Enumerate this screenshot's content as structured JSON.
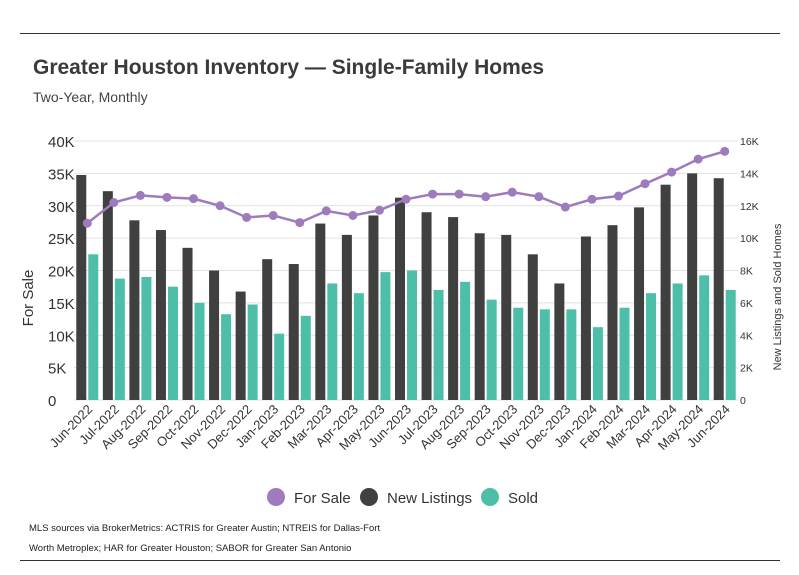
{
  "title": "Greater Houston Inventory — Single-Family Homes",
  "subtitle": "Two-Year, Monthly",
  "source_line1": "MLS sources via BrokerMetrics: ACTRIS for Greater Austin; NTREIS for Dallas-Fort",
  "source_line2": "Worth Metroplex; HAR for Greater Houston; SABOR for Greater San Antonio",
  "colors": {
    "for_sale": "#9e7bbd",
    "new_listings": "#404040",
    "sold": "#4dbfa8",
    "grid": "#e2e2e2",
    "text": "#333333"
  },
  "chart_data": {
    "type": "bar",
    "categories": [
      "Jun-2022",
      "Jul-2022",
      "Aug-2022",
      "Sep-2022",
      "Oct-2022",
      "Nov-2022",
      "Dec-2022",
      "Jan-2023",
      "Feb-2023",
      "Mar-2023",
      "Apr-2023",
      "May-2023",
      "Jun-2023",
      "Jul-2023",
      "Aug-2023",
      "Sep-2023",
      "Oct-2023",
      "Nov-2023",
      "Dec-2023",
      "Jan-2024",
      "Feb-2024",
      "Mar-2024",
      "Apr-2024",
      "May-2024",
      "Jun-2024"
    ],
    "series": [
      {
        "name": "For Sale",
        "type": "line",
        "axis": "left",
        "values": [
          27300,
          30500,
          31600,
          31300,
          31100,
          30000,
          28200,
          28500,
          27400,
          29200,
          28500,
          29300,
          31000,
          31800,
          31800,
          31400,
          32100,
          31400,
          29800,
          31000,
          31500,
          33400,
          35200,
          37200,
          38400
        ]
      },
      {
        "name": "New Listings",
        "type": "bar",
        "axis": "right",
        "values": [
          13900,
          12900,
          11100,
          10500,
          9400,
          8000,
          6700,
          8700,
          8400,
          10900,
          10200,
          11400,
          12500,
          11600,
          11300,
          10300,
          10200,
          9000,
          7200,
          10100,
          10800,
          11900,
          13300,
          14000,
          13700
        ]
      },
      {
        "name": "Sold",
        "type": "bar",
        "axis": "right",
        "values": [
          9000,
          7500,
          7600,
          7000,
          6000,
          5300,
          5900,
          4100,
          5200,
          7200,
          6600,
          7900,
          8000,
          6800,
          7300,
          6200,
          5700,
          5600,
          5600,
          4500,
          5700,
          6600,
          7200,
          7700,
          6800
        ]
      }
    ],
    "ylabel": "For Sale",
    "ylabel_right": "New Listings and Sold Homes",
    "ylim": [
      0,
      40000
    ],
    "ylim_right": [
      0,
      16000
    ],
    "yticks": [
      "0",
      "5K",
      "10K",
      "15K",
      "20K",
      "25K",
      "30K",
      "35K",
      "40K"
    ],
    "yticks_right": [
      "0",
      "2K",
      "4K",
      "6K",
      "8K",
      "10K",
      "12K",
      "14K",
      "16K"
    ],
    "grid": true,
    "legend_position": "bottom",
    "legend": [
      "For Sale",
      "New Listings",
      "Sold"
    ]
  }
}
